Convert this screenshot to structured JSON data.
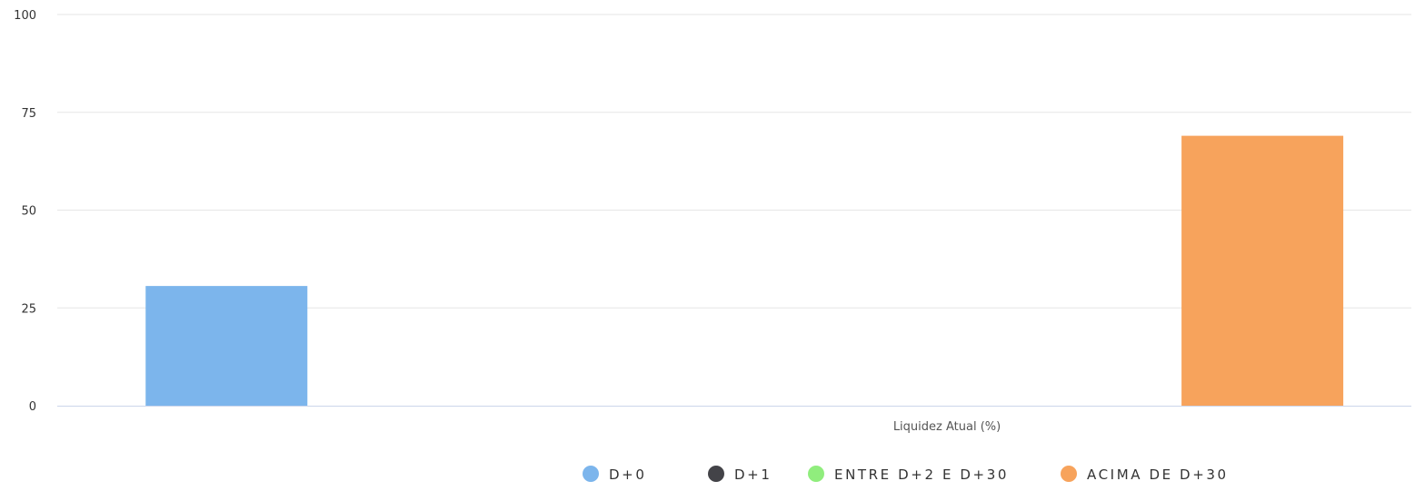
{
  "chart_data": {
    "type": "bar",
    "categories": [
      "Liquidez Atual (%)"
    ],
    "series": [
      {
        "name": "D+0",
        "values": [
          30.6
        ],
        "color": "#7cb5ec"
      },
      {
        "name": "D+1",
        "values": [
          0
        ],
        "color": "#434348"
      },
      {
        "name": "ENTRE D+2 E D+30",
        "values": [
          0
        ],
        "color": "#90ed7d"
      },
      {
        "name": "ACIMA DE D+30",
        "values": [
          69
        ],
        "color": "#f7a35c"
      }
    ],
    "ylim": [
      0,
      100
    ],
    "yticks": [
      0,
      25,
      50,
      75,
      100
    ],
    "grid": true,
    "legend": "bottom-right",
    "title": "",
    "xlabel": "",
    "ylabel": ""
  },
  "colors": {
    "grid": "#e6e6e6",
    "axis": "#ccd6eb"
  }
}
